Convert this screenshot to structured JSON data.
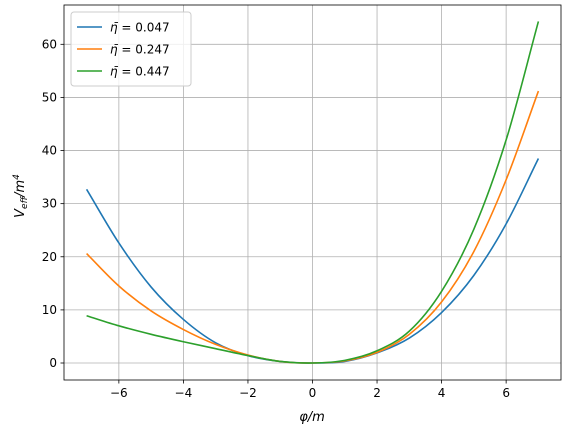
{
  "chart_data": {
    "type": "line",
    "xlabel": "φ/m",
    "ylabel": "V_eff/m^4",
    "xlim": [
      -7.7,
      7.7
    ],
    "ylim": [
      -3.2,
      67.4
    ],
    "x_ticks": [
      -6,
      -4,
      -2,
      0,
      2,
      4,
      6
    ],
    "y_ticks": [
      0,
      10,
      20,
      30,
      40,
      50,
      60
    ],
    "x_tick_labels": [
      "−6",
      "−4",
      "−2",
      "0",
      "2",
      "4",
      "6"
    ],
    "y_tick_labels": [
      "0",
      "10",
      "20",
      "30",
      "40",
      "50",
      "60"
    ],
    "grid": true,
    "legend_position": "top-left",
    "x": [
      -7,
      -6,
      -5,
      -4,
      -3,
      -2,
      -1,
      0,
      1,
      2,
      3,
      4,
      5,
      6,
      7
    ],
    "series": [
      {
        "name": "η̄ = 0.047",
        "legend_eta": "η̄",
        "legend_value": "0.047",
        "color": "#1f77b4",
        "values": [
          32.7,
          22.6,
          14.3,
          8.2,
          3.8,
          1.4,
          0.3,
          0.0,
          0.3,
          1.9,
          4.7,
          9.5,
          16.5,
          26.2,
          38.5
        ]
      },
      {
        "name": "η̄ = 0.247",
        "legend_eta": "η̄",
        "legend_value": "0.247",
        "color": "#ff7f0e",
        "values": [
          20.6,
          14.5,
          9.8,
          6.3,
          3.5,
          1.5,
          0.3,
          0.0,
          0.4,
          2.0,
          5.4,
          11.5,
          21.0,
          34.5,
          51.2
        ]
      },
      {
        "name": "η̄ = 0.447",
        "legend_eta": "η̄",
        "legend_value": "0.447",
        "color": "#2ca02c",
        "values": [
          8.9,
          7.0,
          5.4,
          4.0,
          2.7,
          1.4,
          0.3,
          0.0,
          0.5,
          2.3,
          6.0,
          13.5,
          25.2,
          42.0,
          64.3
        ]
      }
    ]
  }
}
